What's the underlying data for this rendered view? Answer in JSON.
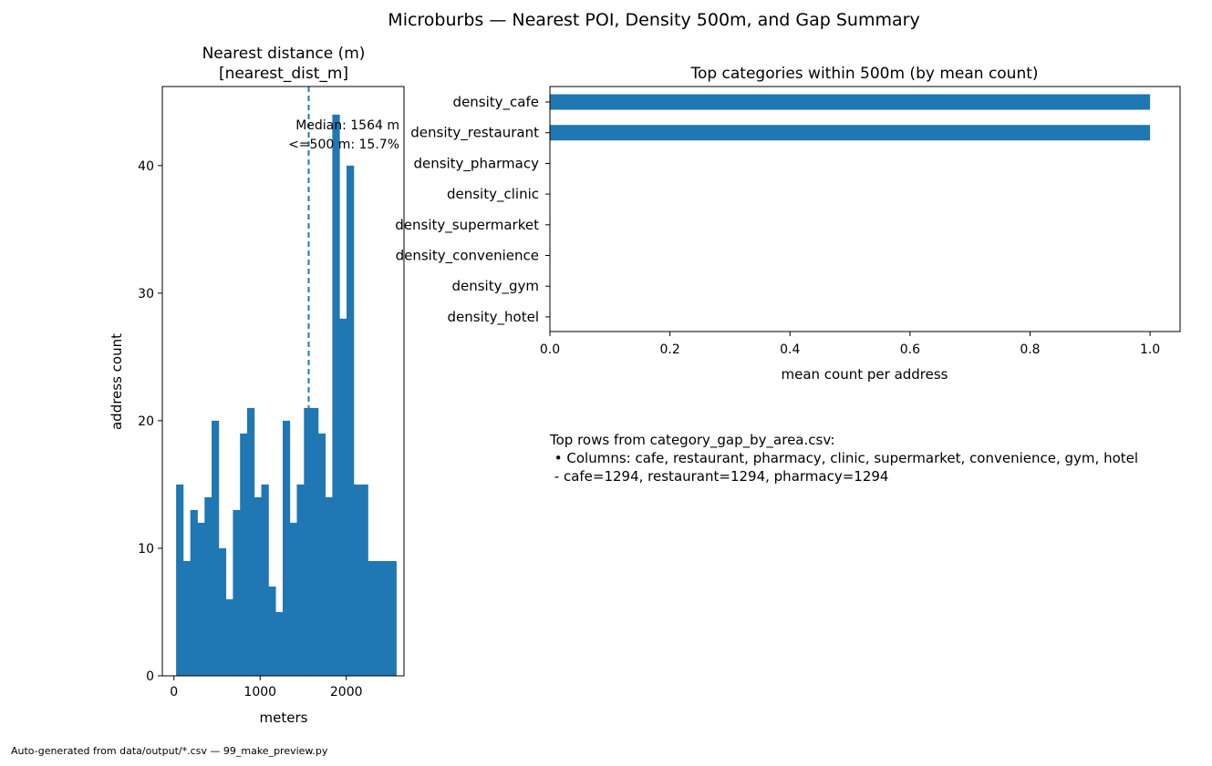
{
  "figure": {
    "suptitle": "Microburbs — Nearest POI, Density 500m, and Gap Summary",
    "footer": "Auto-generated from data/output/*.csv — 99_make_preview.py"
  },
  "colors": {
    "bar": "#1f77b4",
    "median_line": "#1f77b4",
    "axis": "#000000",
    "background": "#ffffff"
  },
  "chart_data": [
    {
      "type": "bar",
      "subtype": "histogram",
      "title": "Nearest distance (m)\n[nearest_dist_m]",
      "title_lines": [
        "Nearest distance (m)",
        "[nearest_dist_m]"
      ],
      "xlabel": "meters",
      "ylabel": "address count",
      "xlim": [
        -135,
        2670
      ],
      "ylim": [
        0,
        46.2
      ],
      "xticks": [
        0,
        1000,
        2000
      ],
      "yticks": [
        0,
        10,
        20,
        30,
        40
      ],
      "bin_edges": [
        25,
        107,
        190,
        272,
        355,
        437,
        519,
        602,
        684,
        767,
        849,
        932,
        1014,
        1097,
        1179,
        1262,
        1344,
        1426,
        1509,
        1591,
        1674,
        1756,
        1838,
        1921,
        2003,
        2086,
        2168,
        2251,
        2333,
        2416,
        2498,
        2580
      ],
      "counts": [
        15,
        9,
        13,
        12,
        14,
        20,
        10,
        6,
        13,
        19,
        21,
        14,
        15,
        7,
        5,
        20,
        12,
        15,
        21,
        21,
        19,
        14,
        44,
        28,
        40,
        15,
        15,
        9,
        9,
        9,
        9
      ],
      "median_line_x": 1564,
      "annotation_lines": [
        "Median: 1564 m",
        "<=500 m: 15.7%"
      ],
      "grid": false
    },
    {
      "type": "bar",
      "orientation": "horizontal",
      "title": "Top categories within 500m (by mean count)",
      "xlabel": "mean count per address",
      "ylabel": "",
      "categories": [
        "density_cafe",
        "density_restaurant",
        "density_pharmacy",
        "density_clinic",
        "density_supermarket",
        "density_convenience",
        "density_gym",
        "density_hotel"
      ],
      "values": [
        1.0,
        1.0,
        0,
        0,
        0,
        0,
        0,
        0
      ],
      "xlim": [
        0,
        1.05
      ],
      "xticks": [
        0.0,
        0.2,
        0.4,
        0.6,
        0.8,
        1.0
      ],
      "xtick_labels": [
        "0.0",
        "0.2",
        "0.4",
        "0.6",
        "0.8",
        "1.0"
      ],
      "grid": false
    }
  ],
  "summary_text": {
    "lines": [
      "Top rows from category_gap_by_area.csv:",
      " • Columns: cafe, restaurant, pharmacy, clinic, supermarket, convenience, gym, hotel",
      " - cafe=1294, restaurant=1294, pharmacy=1294"
    ]
  }
}
